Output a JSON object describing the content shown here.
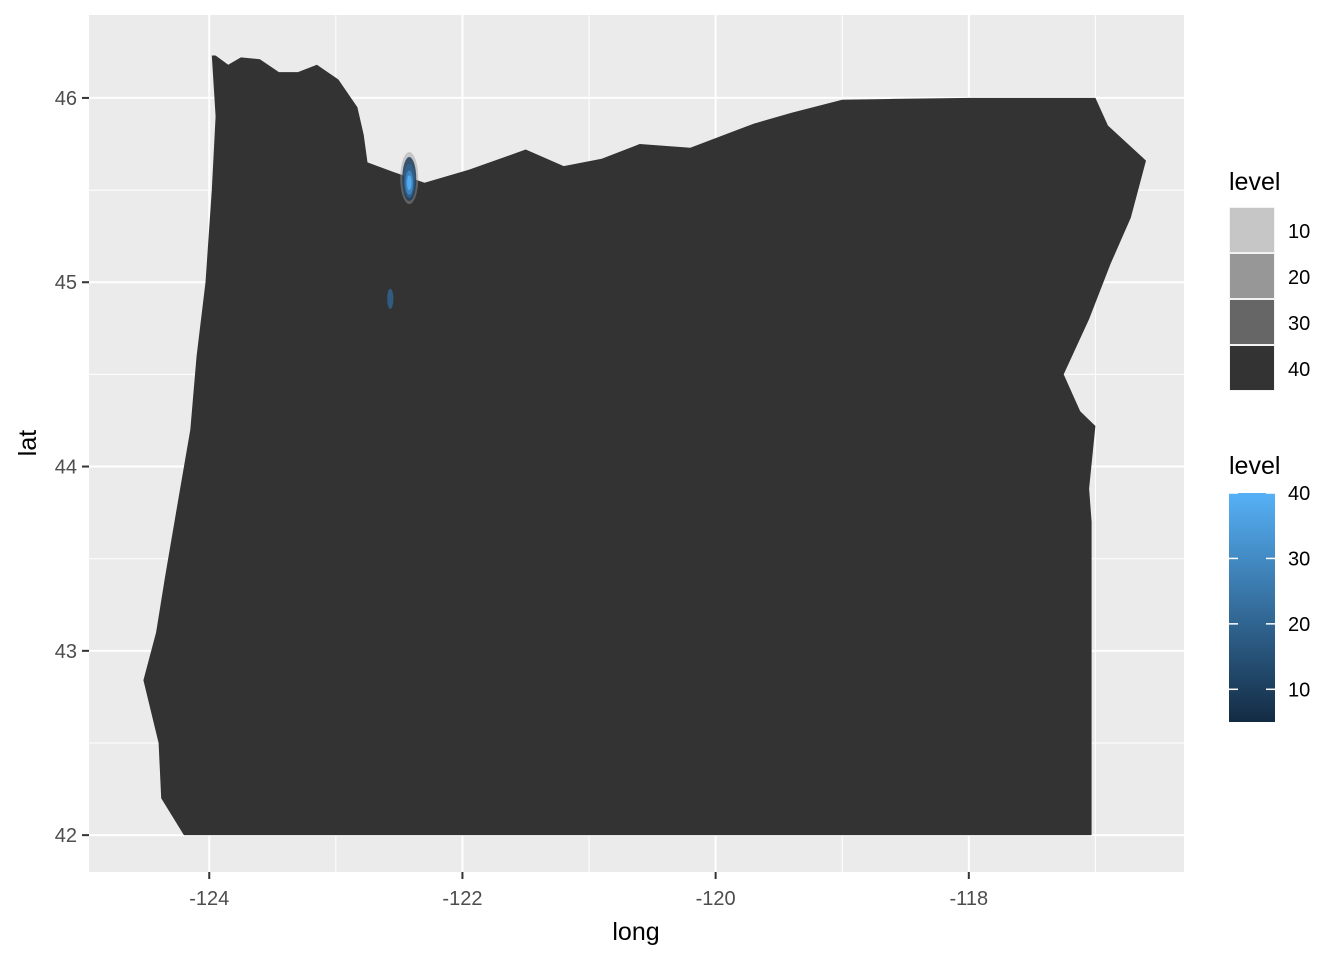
{
  "chart_data": {
    "type": "map",
    "title": "",
    "xlabel": "long",
    "ylabel": "lat",
    "xlim": [
      -124.95,
      -116.3
    ],
    "ylim": [
      41.8,
      46.45
    ],
    "x_ticks": [
      -124,
      -122,
      -120,
      -118
    ],
    "y_ticks": [
      42,
      43,
      44,
      45,
      46
    ],
    "x_tick_labels": [
      "-124",
      "-122",
      "-120",
      "-118"
    ],
    "y_tick_labels": [
      "42",
      "43",
      "44",
      "45",
      "46"
    ],
    "grid": true,
    "panel_color": "#ebebeb",
    "grid_color": "#ffffff",
    "region_fill": "#333333",
    "region": {
      "name": "Oregon",
      "outline": [
        [
          -123.95,
          46.23
        ],
        [
          -123.85,
          46.18
        ],
        [
          -123.75,
          46.22
        ],
        [
          -123.6,
          46.21
        ],
        [
          -123.45,
          46.14
        ],
        [
          -123.3,
          46.14
        ],
        [
          -123.15,
          46.18
        ],
        [
          -122.98,
          46.1
        ],
        [
          -122.83,
          45.95
        ],
        [
          -122.78,
          45.8
        ],
        [
          -122.75,
          45.65
        ],
        [
          -122.55,
          45.6
        ],
        [
          -122.3,
          45.54
        ],
        [
          -121.95,
          45.61
        ],
        [
          -121.5,
          45.72
        ],
        [
          -121.2,
          45.63
        ],
        [
          -120.9,
          45.67
        ],
        [
          -120.6,
          45.75
        ],
        [
          -120.2,
          45.73
        ],
        [
          -119.7,
          45.86
        ],
        [
          -119.4,
          45.92
        ],
        [
          -119.0,
          45.99
        ],
        [
          -118.6,
          45.995
        ],
        [
          -117.98,
          46.0
        ],
        [
          -117.6,
          46.0
        ],
        [
          -117.0,
          46.0
        ],
        [
          -116.9,
          45.85
        ],
        [
          -116.6,
          45.66
        ],
        [
          -116.72,
          45.35
        ],
        [
          -116.88,
          45.1
        ],
        [
          -117.05,
          44.8
        ],
        [
          -117.25,
          44.5
        ],
        [
          -117.12,
          44.3
        ],
        [
          -117.0,
          44.22
        ],
        [
          -117.05,
          43.88
        ],
        [
          -117.03,
          43.7
        ],
        [
          -117.03,
          43.0
        ],
        [
          -117.03,
          42.0
        ],
        [
          -119.5,
          42.0
        ],
        [
          -120.5,
          42.0
        ],
        [
          -122.0,
          42.0
        ],
        [
          -123.5,
          42.0
        ],
        [
          -124.2,
          42.0
        ],
        [
          -124.38,
          42.2
        ],
        [
          -124.4,
          42.5
        ],
        [
          -124.52,
          42.84
        ],
        [
          -124.42,
          43.1
        ],
        [
          -124.35,
          43.4
        ],
        [
          -124.25,
          43.8
        ],
        [
          -124.15,
          44.2
        ],
        [
          -124.1,
          44.6
        ],
        [
          -124.03,
          45.0
        ],
        [
          -123.98,
          45.5
        ],
        [
          -123.95,
          45.9
        ],
        [
          -123.98,
          46.23
        ]
      ]
    },
    "series": [
      {
        "name": "level",
        "layer": "density_polygon",
        "contours": [
          {
            "x": -122.42,
            "y": 45.56,
            "level": 10
          },
          {
            "x": -122.42,
            "y": 45.55,
            "level": 20
          },
          {
            "x": -122.42,
            "y": 45.54,
            "level": 30
          },
          {
            "x": -122.42,
            "y": 45.54,
            "level": 40
          },
          {
            "x": -122.57,
            "y": 44.91,
            "level": 20
          }
        ]
      }
    ],
    "legends": [
      {
        "title": "level",
        "kind": "alpha",
        "placement": "right-top",
        "entries": [
          {
            "label": "10",
            "color": "#c6c6c6"
          },
          {
            "label": "20",
            "color": "#979797"
          },
          {
            "label": "30",
            "color": "#666666"
          },
          {
            "label": "40",
            "color": "#333333"
          }
        ]
      },
      {
        "title": "level",
        "kind": "colorbar",
        "placement": "right-bottom",
        "min": 5,
        "max": 40,
        "breaks": [
          10,
          20,
          30,
          40
        ],
        "break_labels": [
          "10",
          "20",
          "30",
          "40"
        ],
        "low_color": "#132b43",
        "high_color": "#56b1f7"
      }
    ]
  }
}
